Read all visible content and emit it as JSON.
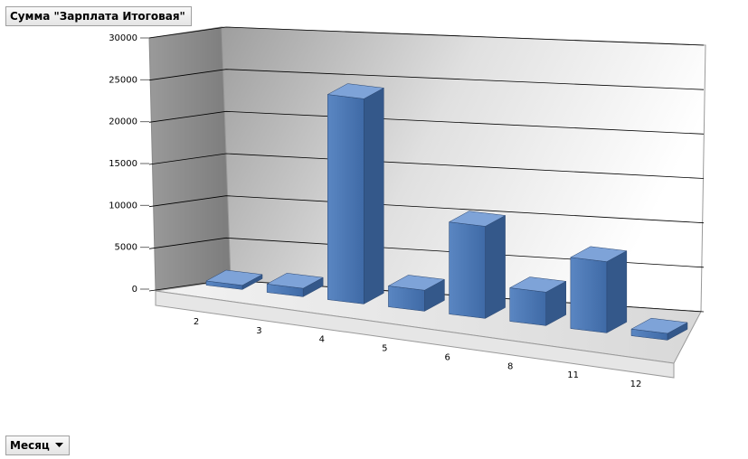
{
  "chart_data": {
    "type": "bar3d",
    "title": "Сумма \"Зарплата Итоговая\"",
    "xlabel": "Месяц",
    "categories": [
      "2",
      "3",
      "4",
      "5",
      "6",
      "8",
      "11",
      "12"
    ],
    "values": [
      500,
      1000,
      24500,
      2500,
      11000,
      4000,
      8500,
      800
    ],
    "color": "#4f81bd",
    "ylim": [
      0,
      30000
    ],
    "yticks": [
      0,
      5000,
      10000,
      15000,
      20000,
      25000,
      30000
    ],
    "grid": true
  }
}
